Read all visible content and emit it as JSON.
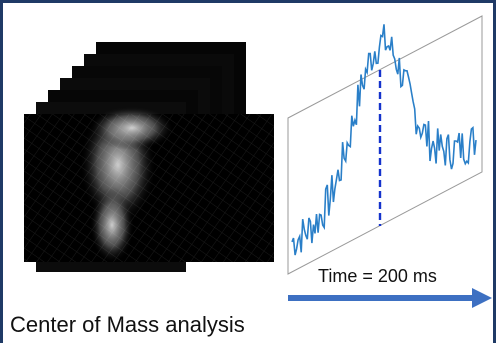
{
  "caption": "Center of Mass analysis",
  "time_label": "Time = 200 ms",
  "colors": {
    "frame_border": "#1f3a66",
    "signal_line": "#2a7fc8",
    "marker_line": "#1433cc",
    "arrow": "#3d70c2"
  },
  "icons": {
    "stack": "image-stack-icon",
    "arrow": "time-arrow-icon"
  }
}
